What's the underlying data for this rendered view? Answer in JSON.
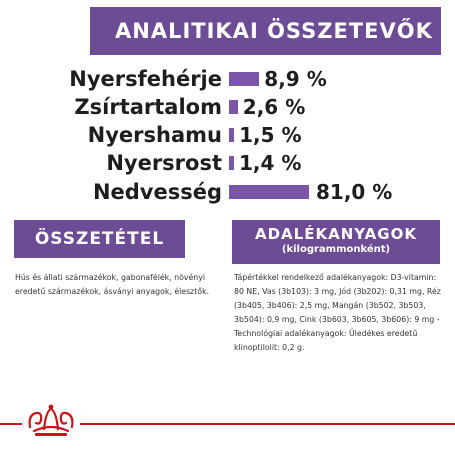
{
  "header": {
    "title": "ANALITIKAI ÖSSZETEVŐK",
    "accent_color": "#6d4c96"
  },
  "nutrients": [
    {
      "label": "Nyersfehérje",
      "value": "8,9 %",
      "percent": 8.9
    },
    {
      "label": "Zsírtartalom",
      "value": "2,6 %",
      "percent": 2.6
    },
    {
      "label": "Nyershamu",
      "value": "1,5 %",
      "percent": 1.5
    },
    {
      "label": "Nyersrost",
      "value": "1,4 %",
      "percent": 1.4
    },
    {
      "label": "Nedvesség",
      "value": "81,0 %",
      "percent": 81.0
    }
  ],
  "composition": {
    "title": "ÖSSZETÉTEL",
    "text": "Hús és állati származékok, gabonafélék, növényi eredetű származékok, ásványi anyagok, élesztők."
  },
  "additives": {
    "title": "ADALÉKANYAGOK",
    "subtitle": "(kilogrammonként)",
    "text": "Tápértékkel rendelkező adalékanyagok: D3-vitamin: 80 NE, Vas (3b103): 3 mg, Jód (3b202): 0,31 mg, Réz (3b405, 3b406): 2,5 mg, Mangán (3b502, 3b503, 3b504): 0,9 mg, Cink (3b603, 3b605, 3b606): 9 mg - Technológiai adalékanyagok: Üledékes eredetű klinoptilolit: 0,2 g."
  },
  "footer": {
    "line_color": "#c4161c",
    "logo_icon": "royal-crown-icon"
  }
}
